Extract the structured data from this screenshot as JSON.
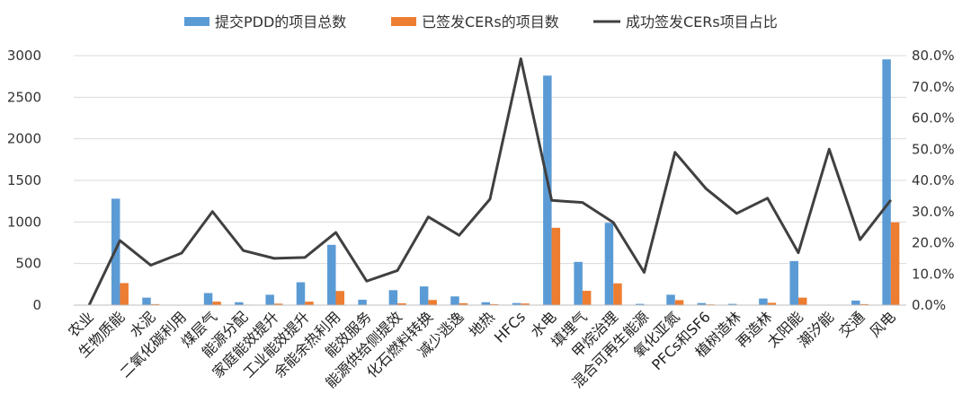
{
  "chart_data": {
    "type": "bar",
    "categories": [
      "农业",
      "生物质能",
      "水泥",
      "二氧化碳利用",
      "煤层气",
      "能源分配",
      "家庭能效提升",
      "工业能效提升",
      "余能余热利用",
      "能效服务",
      "能源供给侧提效",
      "化石燃料转换",
      "减少逃逸",
      "地热",
      "HFCs",
      "水电",
      "填埋气",
      "甲烷治理",
      "混合可再生能源",
      "氧化亚氮",
      "PFCs和SF6",
      "植树造林",
      "再造林",
      "太阳能",
      "潮汐能",
      "交通",
      "风电"
    ],
    "series": [
      {
        "name": "提交PDD的项目总数",
        "type": "bar",
        "axis": "left",
        "color": "#5B9BD5",
        "values": [
          1,
          1280,
          90,
          5,
          145,
          35,
          125,
          275,
          725,
          65,
          180,
          225,
          105,
          35,
          25,
          2760,
          520,
          990,
          15,
          125,
          25,
          15,
          80,
          530,
          2,
          55,
          2955
        ]
      },
      {
        "name": "已签发CERs的项目数",
        "type": "bar",
        "axis": "left",
        "color": "#ED7D31",
        "values": [
          0,
          265,
          12,
          1,
          42,
          6,
          18,
          42,
          170,
          5,
          22,
          62,
          23,
          12,
          20,
          930,
          172,
          262,
          2,
          60,
          9,
          4,
          28,
          90,
          1,
          12,
          995
        ]
      },
      {
        "name": "成功签发CERs项目占比",
        "type": "line",
        "axis": "right",
        "color": "#404040",
        "values": [
          0.0,
          20.7,
          12.8,
          16.7,
          30.0,
          17.5,
          15.0,
          15.3,
          23.3,
          7.7,
          11.1,
          28.3,
          22.4,
          34.0,
          79.0,
          33.6,
          32.9,
          26.5,
          10.5,
          49.0,
          37.4,
          29.4,
          34.3,
          16.8,
          50.0,
          21.0,
          33.7
        ]
      }
    ],
    "y_left": {
      "min": 0,
      "max": 3000,
      "ticks": [
        "0",
        "500",
        "1000",
        "1500",
        "2000",
        "2500",
        "3000"
      ]
    },
    "y_right": {
      "min": 0,
      "max": 80,
      "ticks": [
        "0.0%",
        "10.0%",
        "20.0%",
        "30.0%",
        "40.0%",
        "50.0%",
        "60.0%",
        "70.0%",
        "80.0%"
      ]
    },
    "grid": "horizontal",
    "legend": "top"
  }
}
